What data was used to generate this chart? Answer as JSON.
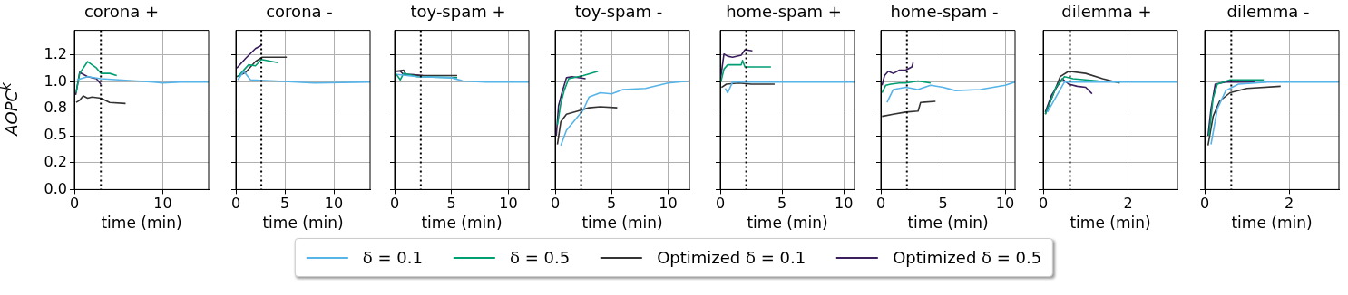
{
  "chart_data": [
    {
      "type": "line",
      "title": "corona +",
      "xlabel": "time (min)",
      "ylabel": "AOPC$^{k}$",
      "xlim": [
        0,
        15.2
      ],
      "xticks": [
        0,
        10
      ],
      "ylim": [
        0,
        1.48
      ],
      "yticks": [
        {
          "value": 0,
          "label": "0.0"
        },
        {
          "value": 0.25,
          "label": "0.2"
        },
        {
          "value": 0.5,
          "label": "0.5"
        },
        {
          "value": 0.75,
          "label": "0.8"
        },
        {
          "value": 1.0,
          "label": "1.0"
        },
        {
          "value": 1.25,
          "label": "1.2"
        }
      ],
      "grid": true,
      "legend": "bottom",
      "ref_lines": [
        {
          "axis": "x",
          "value": 3.0,
          "color": "#000000",
          "line_style": "dotted"
        }
      ],
      "series": [
        {
          "name": "δ = 0.1",
          "color": "#56b4e9",
          "x": [
            0.3,
            1.5,
            3,
            5,
            7,
            9,
            10,
            12,
            15.2
          ],
          "values": [
            1.02,
            1.05,
            1.03,
            1.02,
            1.01,
            1.0,
            0.99,
            1.0,
            1.0
          ]
        },
        {
          "name": "δ = 0.5",
          "color": "#009e73",
          "x": [
            0.2,
            0.6,
            1.5,
            2.5,
            3,
            4,
            4.8
          ],
          "values": [
            0.9,
            1.08,
            1.19,
            1.13,
            1.08,
            1.08,
            1.06
          ]
        },
        {
          "name": "Optimized δ = 0.1",
          "color": "#333333",
          "x": [
            0.2,
            0.6,
            1,
            1.5,
            2,
            3,
            4,
            5.8
          ],
          "values": [
            0.81,
            0.83,
            0.87,
            0.85,
            0.86,
            0.85,
            0.81,
            0.8
          ]
        },
        {
          "name": "Optimized δ = 0.5",
          "color": "#3b1f5e",
          "x": [
            0.15,
            0.6,
            1.5,
            2.5,
            3
          ],
          "values": [
            0.88,
            1.09,
            1.05,
            1.03,
            0.98
          ]
        }
      ]
    },
    {
      "type": "line",
      "title": "corona -",
      "xlabel": "time (min)",
      "xlim": [
        0,
        13.7
      ],
      "xticks": [
        0,
        5,
        10
      ],
      "ylim": [
        0,
        1.48
      ],
      "yticks": [
        {
          "value": 0,
          "label": null
        },
        {
          "value": 0.25,
          "label": null
        },
        {
          "value": 0.5,
          "label": null
        },
        {
          "value": 0.75,
          "label": null
        },
        {
          "value": 1.0,
          "label": null
        },
        {
          "value": 1.25,
          "label": null
        }
      ],
      "tick_labels": "x",
      "grid": true,
      "ref_lines": [
        {
          "axis": "x",
          "value": 2.6,
          "color": "#000000",
          "line_style": "dotted"
        }
      ],
      "series": [
        {
          "color": "#56b4e9",
          "x": [
            0.2,
            0.8,
            1.5,
            4,
            8,
            13.7
          ],
          "values": [
            1.02,
            1.1,
            1.02,
            1.01,
            0.99,
            1.0
          ]
        },
        {
          "color": "#009e73",
          "x": [
            0.2,
            1.3,
            2,
            2.6,
            4.3
          ],
          "values": [
            1.05,
            1.16,
            1.15,
            1.21,
            1.18
          ]
        },
        {
          "color": "#333333",
          "x": [
            0.1,
            1,
            2,
            2.7,
            5.2
          ],
          "values": [
            1.05,
            1.09,
            1.19,
            1.23,
            1.23
          ]
        },
        {
          "color": "#3b1f5e",
          "x": [
            0.1,
            1,
            2,
            2.6
          ],
          "values": [
            1.13,
            1.22,
            1.31,
            1.34
          ]
        }
      ]
    },
    {
      "type": "line",
      "title": "toy-spam +",
      "xlabel": "time (min)",
      "xlim": [
        0,
        11.8
      ],
      "xticks": [
        0,
        5,
        10
      ],
      "ylim": [
        0,
        1.48
      ],
      "yticks": [
        {
          "value": 0,
          "label": null
        },
        {
          "value": 0.25,
          "label": null
        },
        {
          "value": 0.5,
          "label": null
        },
        {
          "value": 0.75,
          "label": null
        },
        {
          "value": 1.0,
          "label": null
        },
        {
          "value": 1.25,
          "label": null
        }
      ],
      "tick_labels": "x",
      "grid": true,
      "ref_lines": [
        {
          "axis": "x",
          "value": 2.3,
          "color": "#000000",
          "line_style": "dotted"
        }
      ],
      "series": [
        {
          "color": "#56b4e9",
          "x": [
            0.2,
            2,
            5,
            6,
            8,
            11.8
          ],
          "values": [
            1.07,
            1.05,
            1.04,
            1.01,
            1.0,
            1.0
          ]
        },
        {
          "color": "#009e73",
          "x": [
            0.1,
            0.5,
            0.8,
            2,
            5.5
          ],
          "values": [
            1.08,
            1.02,
            1.08,
            1.05,
            1.04
          ]
        },
        {
          "color": "#333333",
          "x": [
            0.1,
            0.8,
            1,
            2,
            5.5
          ],
          "values": [
            1.1,
            1.11,
            1.07,
            1.06,
            1.06
          ]
        },
        {
          "color": "#3b1f5e",
          "x": [
            0.1,
            0.5,
            0.8,
            1.5,
            2.5
          ],
          "values": [
            1.1,
            1.1,
            1.07,
            1.07,
            1.06
          ]
        }
      ]
    },
    {
      "type": "line",
      "title": "toy-spam -",
      "xlabel": "time (min)",
      "xlim": [
        0,
        11.9
      ],
      "xticks": [
        0,
        5,
        10
      ],
      "ylim": [
        0,
        1.48
      ],
      "yticks": [
        {
          "value": 0,
          "label": null
        },
        {
          "value": 0.25,
          "label": null
        },
        {
          "value": 0.5,
          "label": null
        },
        {
          "value": 0.75,
          "label": null
        },
        {
          "value": 1.0,
          "label": null
        },
        {
          "value": 1.25,
          "label": null
        }
      ],
      "tick_labels": "x",
      "grid": true,
      "ref_lines": [
        {
          "axis": "x",
          "value": 2.3,
          "color": "#000000",
          "line_style": "dotted"
        }
      ],
      "series": [
        {
          "color": "#56b4e9",
          "x": [
            0.5,
            1,
            2.5,
            3,
            4,
            5,
            6,
            8,
            10,
            11.9
          ],
          "values": [
            0.41,
            0.55,
            0.74,
            0.86,
            0.9,
            0.89,
            0.93,
            0.94,
            0.99,
            1.01
          ]
        },
        {
          "color": "#009e73",
          "x": [
            0.2,
            0.5,
            0.8,
            1.2,
            2.5,
            3.8
          ],
          "values": [
            0.6,
            0.8,
            0.92,
            1.03,
            1.06,
            1.1
          ]
        },
        {
          "color": "#333333",
          "x": [
            0.2,
            0.5,
            1,
            2,
            3,
            4,
            5.5
          ],
          "values": [
            0.42,
            0.63,
            0.7,
            0.73,
            0.76,
            0.77,
            0.76
          ]
        },
        {
          "color": "#3b1f5e",
          "x": [
            0.1,
            0.3,
            0.6,
            1,
            1.5,
            2.7
          ],
          "values": [
            0.5,
            0.78,
            0.9,
            1.04,
            1.05,
            1.03
          ]
        }
      ]
    },
    {
      "type": "line",
      "title": "home-spam +",
      "xlabel": "time (min)",
      "xlim": [
        0,
        10.86
      ],
      "xticks": [
        0,
        5,
        10
      ],
      "ylim": [
        0,
        1.48
      ],
      "yticks": [
        {
          "value": 0,
          "label": null
        },
        {
          "value": 0.25,
          "label": null
        },
        {
          "value": 0.5,
          "label": null
        },
        {
          "value": 0.75,
          "label": null
        },
        {
          "value": 1.0,
          "label": null
        },
        {
          "value": 1.25,
          "label": null
        }
      ],
      "tick_labels": "x",
      "grid": true,
      "ref_lines": [
        {
          "axis": "x",
          "value": 2.1,
          "color": "#000000",
          "line_style": "dotted"
        }
      ],
      "series": [
        {
          "color": "#56b4e9",
          "x": [
            0.4,
            0.6,
            1,
            2,
            4.4,
            10.86
          ],
          "values": [
            0.94,
            0.9,
            1.0,
            1.0,
            1.0,
            1.0
          ]
        },
        {
          "color": "#009e73",
          "x": [
            0.05,
            0.3,
            0.6,
            1.7,
            1.8,
            2,
            4.1
          ],
          "values": [
            1.0,
            1.12,
            1.16,
            1.16,
            1.2,
            1.14,
            1.14
          ]
        },
        {
          "color": "#333333",
          "x": [
            0.1,
            0.5,
            1.5,
            2.5,
            4.4
          ],
          "values": [
            0.95,
            0.98,
            0.99,
            0.98,
            0.98
          ]
        },
        {
          "color": "#3b1f5e",
          "x": [
            0.05,
            0.3,
            0.6,
            1,
            1.7,
            2,
            2.6
          ],
          "values": [
            1.05,
            1.26,
            1.24,
            1.23,
            1.25,
            1.3,
            1.29
          ]
        }
      ]
    },
    {
      "type": "line",
      "title": "home-spam -",
      "xlabel": "time (min)",
      "xlim": [
        0,
        10.8
      ],
      "xticks": [
        0,
        5,
        10
      ],
      "ylim": [
        0,
        1.48
      ],
      "yticks": [
        {
          "value": 0,
          "label": null
        },
        {
          "value": 0.25,
          "label": null
        },
        {
          "value": 0.5,
          "label": null
        },
        {
          "value": 0.75,
          "label": null
        },
        {
          "value": 1.0,
          "label": null
        },
        {
          "value": 1.25,
          "label": null
        }
      ],
      "tick_labels": "x",
      "grid": true,
      "ref_lines": [
        {
          "axis": "x",
          "value": 2.1,
          "color": "#000000",
          "line_style": "dotted"
        }
      ],
      "series": [
        {
          "color": "#56b4e9",
          "x": [
            0.5,
            1,
            2,
            3,
            4,
            5,
            6,
            8,
            10,
            10.8
          ],
          "values": [
            0.81,
            0.93,
            0.95,
            0.93,
            0.97,
            0.95,
            0.92,
            0.93,
            0.97,
            1.0
          ]
        },
        {
          "color": "#009e73",
          "x": [
            0.1,
            0.4,
            0.8,
            1.5,
            2,
            3,
            4
          ],
          "values": [
            0.9,
            0.97,
            0.98,
            0.99,
            0.99,
            1.01,
            0.99
          ]
        },
        {
          "color": "#333333",
          "x": [
            0.1,
            1,
            2,
            3,
            3.2,
            4.4
          ],
          "values": [
            0.68,
            0.7,
            0.72,
            0.73,
            0.81,
            0.82
          ]
        },
        {
          "color": "#3b1f5e",
          "x": [
            0.1,
            0.3,
            0.6,
            1,
            1.5,
            2,
            2.5,
            2.6
          ],
          "values": [
            0.97,
            1.06,
            1.1,
            1.08,
            1.11,
            1.11,
            1.14,
            1.18
          ]
        }
      ]
    },
    {
      "type": "line",
      "title": "dilemma +",
      "xlabel": "time (min)",
      "xlim": [
        0,
        3.16
      ],
      "xticks": [
        0,
        2
      ],
      "ylim": [
        0,
        1.48
      ],
      "yticks": [
        {
          "value": 0,
          "label": null
        },
        {
          "value": 0.25,
          "label": null
        },
        {
          "value": 0.5,
          "label": null
        },
        {
          "value": 0.75,
          "label": null
        },
        {
          "value": 1.0,
          "label": null
        },
        {
          "value": 1.25,
          "label": null
        }
      ],
      "tick_labels": "x",
      "grid": true,
      "ref_lines": [
        {
          "axis": "x",
          "value": 0.63,
          "color": "#000000",
          "line_style": "dotted"
        }
      ],
      "series": [
        {
          "color": "#56b4e9",
          "x": [
            0.1,
            0.5,
            1,
            1.5,
            3.16
          ],
          "values": [
            0.72,
            1.0,
            1.0,
            1.0,
            1.0
          ]
        },
        {
          "color": "#009e73",
          "x": [
            0.05,
            0.3,
            0.5,
            0.7,
            1,
            1.3,
            1.8
          ],
          "values": [
            0.7,
            0.95,
            1.05,
            1.03,
            1.02,
            1.01,
            1.0
          ]
        },
        {
          "color": "#333333",
          "x": [
            0.05,
            0.2,
            0.4,
            0.6,
            1,
            1.4,
            1.8
          ],
          "values": [
            0.7,
            0.85,
            1.05,
            1.1,
            1.08,
            1.03,
            0.99
          ]
        },
        {
          "color": "#3b1f5e",
          "x": [
            0.05,
            0.2,
            0.45,
            0.6,
            0.8,
            1,
            1.15
          ],
          "values": [
            0.72,
            0.88,
            1.03,
            0.98,
            0.96,
            0.95,
            0.89
          ]
        }
      ]
    },
    {
      "type": "line",
      "title": "dilemma -",
      "xlabel": "time (min)",
      "xlim": [
        0,
        3.18
      ],
      "xticks": [
        0,
        2
      ],
      "ylim": [
        0,
        1.48
      ],
      "yticks": [
        {
          "value": 0,
          "label": null
        },
        {
          "value": 0.25,
          "label": null
        },
        {
          "value": 0.5,
          "label": null
        },
        {
          "value": 0.75,
          "label": null
        },
        {
          "value": 1.0,
          "label": null
        },
        {
          "value": 1.25,
          "label": null
        }
      ],
      "tick_labels": "x",
      "grid": true,
      "ref_lines": [
        {
          "axis": "x",
          "value": 0.63,
          "color": "#000000",
          "line_style": "dotted"
        }
      ],
      "series": [
        {
          "color": "#56b4e9",
          "x": [
            0.15,
            0.3,
            0.5,
            0.8,
            1.5,
            3.18
          ],
          "values": [
            0.42,
            0.75,
            0.92,
            0.98,
            1.0,
            1.0
          ]
        },
        {
          "color": "#009e73",
          "x": [
            0.1,
            0.2,
            0.3,
            0.6,
            1.4
          ],
          "values": [
            0.5,
            0.85,
            0.98,
            1.02,
            1.02
          ]
        },
        {
          "color": "#333333",
          "x": [
            0.08,
            0.2,
            0.35,
            0.6,
            1,
            1.8
          ],
          "values": [
            0.41,
            0.68,
            0.82,
            0.9,
            0.94,
            0.96
          ]
        },
        {
          "color": "#3b1f5e",
          "x": [
            0.08,
            0.15,
            0.25,
            0.5,
            1,
            1.2
          ],
          "values": [
            0.5,
            0.75,
            0.98,
            1.0,
            1.0,
            1.0
          ]
        }
      ]
    }
  ]
}
